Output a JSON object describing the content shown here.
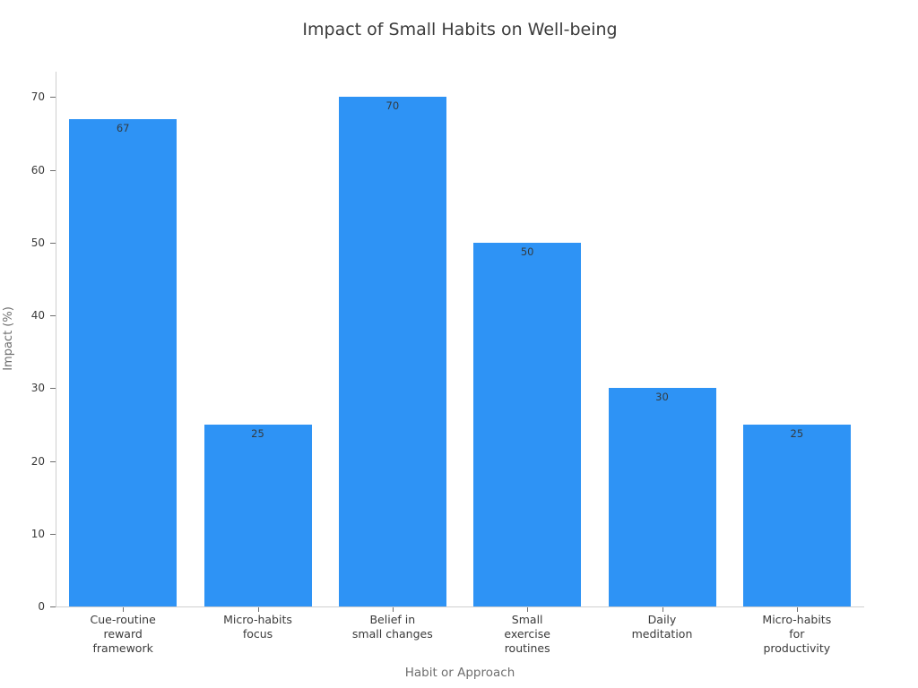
{
  "figure": {
    "background_color": "#ffffff"
  },
  "chart_data": {
    "type": "bar",
    "title": "Impact of Small Habits on Well-being",
    "xlabel": "Habit or Approach",
    "ylabel": "Impact (%)",
    "categories": [
      "Cue-routine\nreward\nframework",
      "Micro-habits\nfocus",
      "Belief in\nsmall changes",
      "Small\nexercise\nroutines",
      "Daily\nmeditation",
      "Micro-habits\nfor\nproductivity"
    ],
    "values": [
      67,
      25,
      70,
      50,
      30,
      25
    ],
    "bar_value_labels": [
      "67",
      "25",
      "70",
      "50",
      "30",
      "25"
    ],
    "yticks": [
      0,
      10,
      20,
      30,
      40,
      50,
      60,
      70
    ],
    "ylim": [
      0,
      73.5
    ],
    "grid": false,
    "legend": null,
    "bar_color": "#2E93F5",
    "bar_label_color": "#333b41",
    "title_color": "#3b3b3b",
    "axis_title_color": "#6f6f6f",
    "tick_label_color": "#3a3a3a",
    "spine_color": "#cfcfcf"
  }
}
